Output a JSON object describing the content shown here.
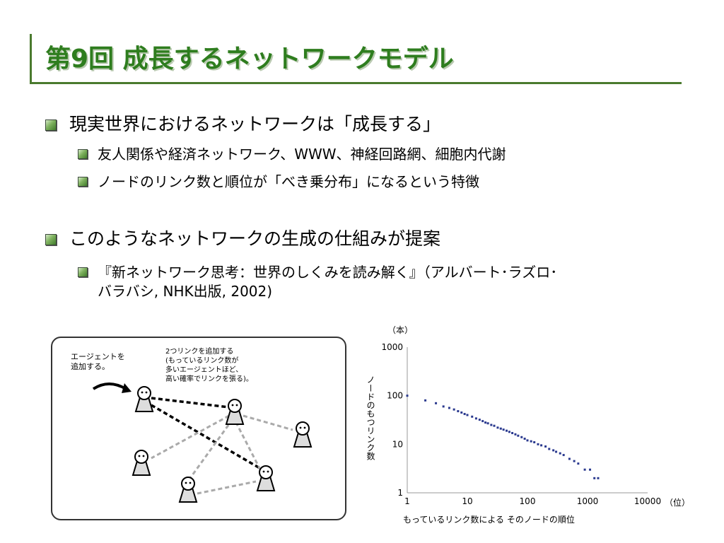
{
  "slide": {
    "title": "第9回 成長するネットワークモデル",
    "bullets": [
      {
        "text": "現実世界におけるネットワークは「成長する」"
      },
      {
        "text": "友人関係や経済ネットワーク、WWW、神経回路網、細胞内代謝"
      },
      {
        "text": "ノードのリンク数と順位が「べき乗分布」になるという特徴"
      },
      {
        "text": "このようなネットワークの生成の仕組みが提案"
      },
      {
        "text": "『新ネットワーク思考：世界のしくみを読み解く』（アルバート･ラズロ･",
        "text2": "バラバシ, NHK出版, 2002)"
      }
    ]
  },
  "diagram": {
    "caption_left": [
      "エージェントを",
      "追加する。"
    ],
    "caption_right": [
      "2つリンクを追加する",
      "(もっているリンク数が",
      "多いエージェントほど、",
      "高い確率でリンクを張る)。"
    ]
  },
  "chart_data": {
    "type": "scatter",
    "title": "",
    "xlabel": "もっているリンク数による そのノードの順位",
    "ylabel": "ノードのもつリンク数",
    "x_unit": "（位）",
    "y_unit": "（本）",
    "xscale": "log",
    "yscale": "log",
    "xlim": [
      1,
      10000
    ],
    "ylim": [
      1,
      1000
    ],
    "x_ticks": [
      "1",
      "10",
      "100",
      "1000",
      "10000"
    ],
    "y_ticks": [
      "1",
      "10",
      "100",
      "1000"
    ],
    "color": "#2b3a8f",
    "points": [
      [
        1,
        100
      ],
      [
        2,
        80
      ],
      [
        3,
        70
      ],
      [
        4,
        60
      ],
      [
        5,
        56
      ],
      [
        6,
        52
      ],
      [
        7,
        48
      ],
      [
        8,
        45
      ],
      [
        9,
        42
      ],
      [
        10,
        40
      ],
      [
        12,
        37
      ],
      [
        14,
        34
      ],
      [
        16,
        32
      ],
      [
        18,
        30
      ],
      [
        20,
        28
      ],
      [
        22,
        27
      ],
      [
        25,
        25
      ],
      [
        28,
        24
      ],
      [
        32,
        22
      ],
      [
        36,
        21
      ],
      [
        40,
        20
      ],
      [
        45,
        19
      ],
      [
        50,
        18
      ],
      [
        56,
        17
      ],
      [
        63,
        16
      ],
      [
        70,
        15
      ],
      [
        80,
        14
      ],
      [
        90,
        13
      ],
      [
        100,
        12
      ],
      [
        115,
        11.5
      ],
      [
        130,
        11
      ],
      [
        150,
        10
      ],
      [
        170,
        9.5
      ],
      [
        200,
        9
      ],
      [
        230,
        8
      ],
      [
        270,
        7.5
      ],
      [
        300,
        7
      ],
      [
        350,
        6.5
      ],
      [
        400,
        6
      ],
      [
        500,
        5
      ],
      [
        600,
        4.5
      ],
      [
        700,
        4
      ],
      [
        900,
        3
      ],
      [
        1100,
        3
      ],
      [
        1300,
        2
      ],
      [
        1500,
        2
      ]
    ]
  }
}
